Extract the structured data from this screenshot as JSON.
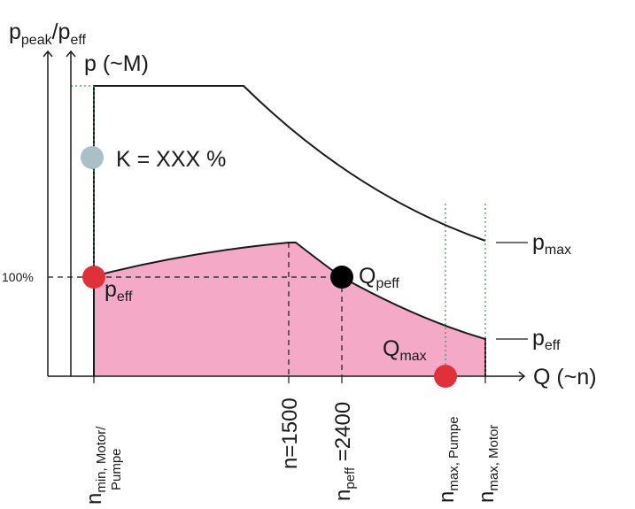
{
  "colors": {
    "pink_fill": "#f4a9c6",
    "red_dot": "#e0303a",
    "grey_dot": "#a9c1c5",
    "black_dot": "#000000",
    "line": "#1a1a1a",
    "dotted": "#3b8f5a"
  },
  "axes": {
    "y_outer_main": "p",
    "y_outer_sub": "peak",
    "y_outer_sep": "/p",
    "y_outer_sub2": "eff",
    "y_inner": "p (~M)",
    "x": "Q (~n)",
    "y_tick_100": "100%"
  },
  "labels": {
    "k_value": "K = XXX %",
    "p_max_main": "p",
    "p_max_sub": "max",
    "p_eff_right_main": "p",
    "p_eff_right_sub": "eff",
    "p_eff_left_main": "p",
    "p_eff_left_sub": "eff",
    "q_peff_main": "Q",
    "q_peff_sub": "peff",
    "q_max_main": "Q",
    "q_max_sub": "max"
  },
  "x_ticks": {
    "n_min_main": "n",
    "n_min_sub1": "min, Motor/",
    "n_min_sub2": "Pumpe",
    "n_1500": "n=1500",
    "n_peff_main": "n",
    "n_peff_sub": "peff",
    "n_peff_val": " =2400",
    "n_max_pumpe_main": "n",
    "n_max_pumpe_sub": "max, Pumpe",
    "n_max_motor_main": "n",
    "n_max_motor_sub": "max, Motor"
  },
  "markers": {
    "grey": "k-marker",
    "red_left": "peff-start-marker",
    "black": "qpeff-marker",
    "red_right": "qmax-marker"
  }
}
